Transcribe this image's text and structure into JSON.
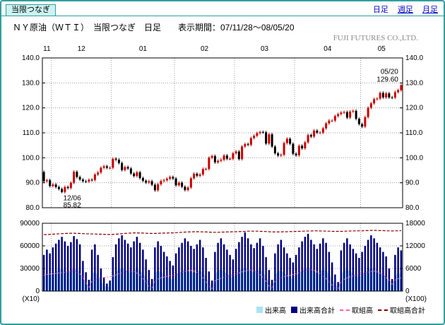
{
  "topbar": {
    "tab_label": "当限つなぎ",
    "links": [
      {
        "label": "日足",
        "current": true
      },
      {
        "label": "週足",
        "current": false
      },
      {
        "label": "月足",
        "current": false
      }
    ]
  },
  "header": {
    "title": "ＮＹ原油（ＷＴＩ）　当限つなぎ　日足　　表示期間：07/11/28～08/05/20",
    "company": "FUJI FUTURES CO.,LTD."
  },
  "legend": {
    "items": [
      {
        "label": "出来高",
        "type": "bar",
        "color": "#a9e4f2"
      },
      {
        "label": "出来高合計",
        "type": "bar",
        "color": "#000080"
      },
      {
        "label": "取組高",
        "type": "dashed-line",
        "color": "#ff5fa8"
      },
      {
        "label": "取組高合計",
        "type": "dashed-line",
        "color": "#8b0000"
      }
    ]
  },
  "chart_data": {
    "type": "candlestick+volume",
    "instrument": "ＮＹ原油（ＷＴＩ） 当限つなぎ 日足",
    "period_label": "表示期間：07/11/28～08/05/20",
    "price_axis": {
      "min": 80,
      "max": 140,
      "step": 10
    },
    "price_ticks": [
      "140.0",
      "130.0",
      "120.0",
      "110.0",
      "100.0",
      "90.0",
      "80.0"
    ],
    "volume_axis_left": {
      "min": 0,
      "max": 90000,
      "step": 30000,
      "unit_label": "(X10)"
    },
    "volume_axis_right": {
      "min": 0,
      "max": 18000,
      "step": 6000,
      "unit_label": "(X100)"
    },
    "volume_ticks_left": [
      "90000",
      "60000",
      "30000",
      "0"
    ],
    "volume_ticks_right": [
      "18000",
      "12000",
      "6000",
      "0"
    ],
    "months": [
      {
        "label": "11",
        "start_index": 0
      },
      {
        "label": "12",
        "start_index": 3
      },
      {
        "label": "01",
        "start_index": 23
      },
      {
        "label": "02",
        "start_index": 44
      },
      {
        "label": "03",
        "start_index": 64
      },
      {
        "label": "04",
        "start_index": 84
      },
      {
        "label": "05",
        "start_index": 106
      }
    ],
    "first_open": 94.3,
    "wick": 0.6,
    "special_points": {
      "low": {
        "index": 6,
        "date": "12/06",
        "value": 85.82
      },
      "high": {
        "index": 119,
        "date": "05/20",
        "value": 129.6
      }
    },
    "closes": [
      90.6,
      91.0,
      88.7,
      89.3,
      88.3,
      87.5,
      86.3,
      88.3,
      87.9,
      90.0,
      94.4,
      92.3,
      91.3,
      90.6,
      90.5,
      91.2,
      91.1,
      93.3,
      94.1,
      96.0,
      96.6,
      96.0,
      96.0,
      99.6,
      99.2,
      97.9,
      95.1,
      96.3,
      95.7,
      93.7,
      92.7,
      94.2,
      91.9,
      90.8,
      90.1,
      90.6,
      89.2,
      87.0,
      89.4,
      90.7,
      91.0,
      91.6,
      92.3,
      91.7,
      89.0,
      90.0,
      88.4,
      87.1,
      88.1,
      91.8,
      93.6,
      92.8,
      93.3,
      95.5,
      95.5,
      100.0,
      100.7,
      98.2,
      98.8,
      99.2,
      100.9,
      99.6,
      99.6,
      101.8,
      102.5,
      99.5,
      104.5,
      105.5,
      105.2,
      107.9,
      108.8,
      109.9,
      110.3,
      110.2,
      105.7,
      109.4,
      104.5,
      101.8,
      100.9,
      101.2,
      105.9,
      107.6,
      105.6,
      101.6,
      101.0,
      104.8,
      103.8,
      106.2,
      109.1,
      108.5,
      110.9,
      110.1,
      110.1,
      111.8,
      113.8,
      114.9,
      114.9,
      116.7,
      117.5,
      118.1,
      118.3,
      116.1,
      118.5,
      118.8,
      115.6,
      113.5,
      112.5,
      116.3,
      120.0,
      121.8,
      123.5,
      123.7,
      126.0,
      124.2,
      125.8,
      124.2,
      124.1,
      126.3,
      127.1,
      129.1
    ],
    "series": {
      "volume": [
        20000,
        23000,
        21000,
        24000,
        26000,
        28000,
        30000,
        27000,
        25000,
        27000,
        30000,
        29000,
        26000,
        17000,
        11000,
        7000,
        23000,
        26000,
        20000,
        13000,
        8000,
        5000,
        6000,
        19000,
        26000,
        29000,
        31000,
        28000,
        26000,
        24000,
        27000,
        30000,
        27000,
        23000,
        18000,
        12000,
        7000,
        24000,
        27000,
        25000,
        22000,
        19000,
        17000,
        14000,
        21000,
        24000,
        27000,
        29000,
        27000,
        25000,
        23000,
        26000,
        28000,
        24000,
        18000,
        11000,
        6000,
        22000,
        27000,
        29000,
        26000,
        23000,
        20000,
        17000,
        23000,
        27000,
        30000,
        32000,
        29000,
        26000,
        24000,
        27000,
        29000,
        25000,
        19000,
        12000,
        6000,
        21000,
        26000,
        28000,
        24000,
        21000,
        18000,
        16000,
        20000,
        24000,
        27000,
        30000,
        32000,
        28000,
        26000,
        23000,
        26000,
        29000,
        27000,
        22000,
        16000,
        9000,
        5000,
        22000,
        27000,
        29000,
        26000,
        23000,
        21000,
        18000,
        22000,
        25000,
        28000,
        31000,
        29000,
        27000,
        24000,
        22000,
        19000,
        12000,
        7000,
        20000,
        24000,
        22000
      ],
      "volume_total": [
        48000,
        55000,
        50000,
        58000,
        63000,
        68000,
        72000,
        66000,
        60000,
        65000,
        73000,
        69000,
        62000,
        40000,
        25000,
        15000,
        55000,
        62000,
        48000,
        30000,
        18000,
        10000,
        14000,
        45000,
        62000,
        70000,
        74000,
        68000,
        63000,
        58000,
        66000,
        72000,
        64000,
        55000,
        42000,
        28000,
        16000,
        58000,
        66000,
        60000,
        52000,
        46000,
        40000,
        34000,
        50000,
        58000,
        64000,
        70000,
        66000,
        60000,
        56000,
        62000,
        68000,
        58000,
        44000,
        26000,
        14000,
        52000,
        64000,
        70000,
        62000,
        55000,
        48000,
        42000,
        56000,
        65000,
        72000,
        78000,
        70000,
        62000,
        57000,
        64000,
        70000,
        60000,
        45000,
        28000,
        15000,
        50000,
        62000,
        68000,
        58000,
        50000,
        44000,
        38000,
        48000,
        58000,
        66000,
        72000,
        76000,
        68000,
        62000,
        56000,
        63000,
        70000,
        64000,
        52000,
        38000,
        22000,
        12000,
        54000,
        64000,
        70000,
        62000,
        56000,
        50000,
        44000,
        52000,
        60000,
        68000,
        74000,
        70000,
        64000,
        58000,
        52000,
        46000,
        30000,
        16000,
        48000,
        58000,
        54000
      ],
      "open_interest": [
        4200,
        4400,
        4500,
        4600,
        4700,
        4800,
        4900,
        5000,
        5100,
        5200,
        5300,
        5100,
        4600,
        3600,
        2200,
        900,
        2600,
        3000,
        3300,
        3500,
        3600,
        3700,
        3800,
        4000,
        4300,
        4600,
        4900,
        5100,
        5300,
        5400,
        5200,
        4800,
        4200,
        3400,
        2400,
        1200,
        700,
        2800,
        3200,
        3500,
        3700,
        3900,
        4100,
        4200,
        4400,
        4700,
        5000,
        5200,
        5400,
        5500,
        5300,
        4900,
        4300,
        3500,
        2500,
        1300,
        700,
        2700,
        3100,
        3400,
        3700,
        3900,
        4100,
        4300,
        4500,
        4800,
        5100,
        5300,
        5500,
        5600,
        5400,
        5000,
        4400,
        3600,
        2600,
        1400,
        700,
        2700,
        3200,
        3500,
        3800,
        4000,
        4200,
        4400,
        4600,
        4900,
        5200,
        5400,
        5600,
        5700,
        5500,
        5100,
        4600,
        4000,
        3300,
        2500,
        1600,
        800,
        600,
        2600,
        3100,
        3500,
        3800,
        4000,
        4200,
        4400,
        4600,
        4800,
        5000,
        5200,
        5300,
        5100,
        4700,
        4200,
        3600,
        2800,
        1800,
        2900,
        3300,
        3500
      ],
      "open_interest_total": [
        15000,
        15000,
        15050,
        15100,
        15150,
        15200,
        15250,
        15300,
        15300,
        15350,
        15350,
        15300,
        15300,
        15250,
        15200,
        15200,
        15150,
        15150,
        15100,
        15100,
        15050,
        15050,
        15000,
        15050,
        15100,
        15150,
        15250,
        15300,
        15350,
        15400,
        15450,
        15450,
        15400,
        15400,
        15350,
        15300,
        15300,
        15300,
        15350,
        15350,
        15400,
        15400,
        15450,
        15450,
        15500,
        15550,
        15600,
        15650,
        15700,
        15700,
        15750,
        15750,
        15750,
        15700,
        15700,
        15650,
        15600,
        15600,
        15600,
        15650,
        15650,
        15700,
        15700,
        15750,
        15750,
        15800,
        15800,
        15850,
        15900,
        15900,
        15900,
        15900,
        15850,
        15850,
        15800,
        15750,
        15700,
        15700,
        15700,
        15700,
        15750,
        15750,
        15800,
        15800,
        15850,
        15850,
        15900,
        15900,
        15950,
        15950,
        16000,
        16000,
        15950,
        15950,
        15900,
        15900,
        15850,
        15850,
        15850,
        15850,
        15900,
        15900,
        15950,
        15950,
        16000,
        16000,
        16000,
        16050,
        16050,
        16100,
        16100,
        16100,
        16050,
        16050,
        16000,
        16000,
        15950,
        16000,
        16000,
        16050
      ]
    },
    "colors": {
      "up": "#cc0000",
      "down": "#000000",
      "grid": "#999999",
      "volume": "#a9e4f2",
      "volume_total": "#000080",
      "open_interest": "#ff5fa8",
      "open_interest_total": "#8b0000",
      "frame": "#2f9e9e"
    }
  }
}
